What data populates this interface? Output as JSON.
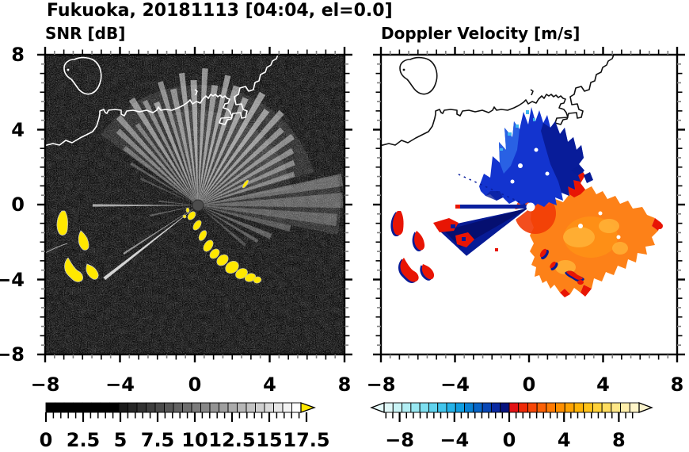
{
  "figure": {
    "title": "Fukuoka, 20181113 [04:04, el=0.0]",
    "panels": [
      {
        "subtitle": "SNR [dB]"
      },
      {
        "subtitle": "Doppler Velocity [m/s]"
      }
    ]
  },
  "axes": {
    "range": [
      -8,
      8
    ],
    "minor_step": 0.5,
    "x_tick_values": [
      -8,
      -4,
      0,
      4,
      8
    ],
    "x_tick_labels": [
      "−8",
      "−4",
      "0",
      "4",
      "8"
    ],
    "y_tick_values": [
      8,
      4,
      0,
      -4,
      -8
    ],
    "y_tick_labels": [
      "8",
      "4",
      "0",
      "−4",
      "−8"
    ]
  },
  "colorbars": {
    "snr": {
      "tick_values": [
        0,
        2.5,
        5,
        7.5,
        10,
        12.5,
        15,
        17.5
      ],
      "tick_labels": [
        "0",
        "2.5",
        "5",
        "7.5",
        "10",
        "12.5",
        "15",
        "17.5"
      ],
      "minor_step": 0.5,
      "overflow_arrow_color": "#ffe800",
      "segments": [
        "#000000",
        "#000000",
        "#000000",
        "#000000",
        "#000000",
        "#000000",
        "#000000",
        "#000000",
        "#1a1a1a",
        "#262626",
        "#323232",
        "#3e3e3e",
        "#4a4a4a",
        "#565656",
        "#626262",
        "#6e6e6e",
        "#7b7b7b",
        "#878787",
        "#939393",
        "#9f9f9f",
        "#ababab",
        "#b7b7b7",
        "#c3c3c3",
        "#cfcfcf",
        "#dbdbdb",
        "#e7e7e7",
        "#f3f3f3",
        "#ffffff"
      ]
    },
    "doppler": {
      "tick_values": [
        -8,
        -4,
        0,
        4,
        8
      ],
      "tick_labels": [
        "−8",
        "−4",
        "0",
        "4",
        "8"
      ],
      "minor_step": 0.5,
      "underflow_arrow_color": "#e6fbfb",
      "overflow_arrow_color": "#fbf3cd",
      "segments_negative": [
        "#dff8f8",
        "#c9f4f6",
        "#b2eef4",
        "#98e8f2",
        "#7ddff0",
        "#60d3ee",
        "#42c5ec",
        "#24b2e8",
        "#109de0",
        "#0881d4",
        "#0765c8",
        "#0847b6",
        "#0a2aa2",
        "#06137e"
      ],
      "segments_positive": [
        "#e31114",
        "#ef2a08",
        "#f74708",
        "#fc6105",
        "#ff7a02",
        "#ff9000",
        "#ffa303",
        "#ffb408",
        "#ffc31a",
        "#ffd13a",
        "#ffdd60",
        "#ffe787",
        "#ffefab",
        "#fff5c9"
      ]
    }
  },
  "chart_data": [
    {
      "type": "heatmap",
      "variant": "radar_ppi",
      "title": "SNR [dB]",
      "xlim": [
        -8,
        8
      ],
      "ylim": [
        -8,
        8
      ],
      "xticks": [
        -8,
        -4,
        0,
        4,
        8
      ],
      "yticks": [
        8,
        4,
        0,
        -4,
        -8
      ],
      "minor_tick_step": 0.5,
      "grid": false,
      "radar_center_xy": [
        0.1,
        -0.1
      ],
      "colorbar": {
        "ticks": [
          0,
          2.5,
          5,
          7.5,
          10,
          12.5,
          15,
          17.5
        ],
        "range": [
          0,
          17.5
        ],
        "scheme": "black to white grayscale, black below 5 dB",
        "overflow": "yellow arrow for values above range"
      },
      "features": [
        "black noisy background speckle over whole panel",
        "white coastline of Hakata Bay across upper third with boxy harbor piers, exiting top edge near x=4.5",
        "closed island outline near (-6.5,6.5) with small islet dot",
        "bright white radial beams fanning mostly upward and to the right from radar center near (0,-0.1)",
        "thin bright ray toward lower-left and horizontal ray toward left",
        "dark gray radar dome disk at the center",
        "high-SNR yellow arc cluster near (-7,-1.5) to (-6,-4)",
        "chain of yellow high-SNR blobs from just below center toward (3.5,-4)"
      ],
      "beams": [
        [
          10,
          152,
          128,
          0.1
        ],
        [
          32,
          120,
          96,
          0.08
        ],
        [
          90,
          180,
          24,
          0.11
        ],
        [
          -52,
          118,
          3,
          0.3
        ],
        [
          -47,
          138,
          3,
          0.38
        ],
        [
          -42,
          150,
          3,
          0.42
        ],
        [
          -37,
          128,
          2.5,
          0.36
        ],
        [
          -32,
          158,
          3,
          0.48
        ],
        [
          -27,
          148,
          2.5,
          0.42
        ],
        [
          -22,
          140,
          3,
          0.5
        ],
        [
          -17,
          163,
          2.5,
          0.46
        ],
        [
          -12,
          150,
          3,
          0.44
        ],
        [
          -7,
          168,
          2.5,
          0.5
        ],
        [
          -2,
          158,
          3,
          0.52
        ],
        [
          3,
          173,
          2.5,
          0.5
        ],
        [
          8,
          153,
          3,
          0.48
        ],
        [
          13,
          168,
          2.5,
          0.52
        ],
        [
          18,
          158,
          3,
          0.5
        ],
        [
          24,
          148,
          3,
          0.5
        ],
        [
          30,
          163,
          3,
          0.52
        ],
        [
          36,
          148,
          3,
          0.5
        ],
        [
          42,
          158,
          3,
          0.48
        ],
        [
          48,
          143,
          3,
          0.44
        ],
        [
          54,
          148,
          3,
          0.42
        ],
        [
          60,
          138,
          3,
          0.4
        ],
        [
          66,
          133,
          3,
          0.38
        ],
        [
          72,
          128,
          3,
          0.34
        ],
        [
          80,
          185,
          5,
          0.26
        ],
        [
          88,
          183,
          6,
          0.24
        ],
        [
          96,
          176,
          5,
          0.22
        ],
        [
          104,
          120,
          4,
          0.26
        ],
        [
          113,
          100,
          4,
          0.28
        ],
        [
          121,
          88,
          3,
          0.26
        ],
        [
          130,
          78,
          3,
          0.22
        ],
        [
          232,
          150,
          1.6,
          0.8
        ],
        [
          237,
          112,
          1.2,
          0.5
        ],
        [
          258,
          62,
          2,
          0.28
        ],
        [
          270,
          133,
          1.4,
          0.6
        ],
        [
          276,
          50,
          2,
          0.26
        ],
        [
          -58,
          100,
          2,
          0.26
        ],
        [
          -65,
          80,
          2,
          0.2
        ]
      ]
    },
    {
      "type": "heatmap",
      "variant": "radar_ppi",
      "title": "Doppler Velocity [m/s]",
      "xlim": [
        -8,
        8
      ],
      "ylim": [
        -8,
        8
      ],
      "xticks": [
        -8,
        -4,
        0,
        4,
        8
      ],
      "yticks": [
        8,
        4,
        0,
        -4,
        -8
      ],
      "minor_tick_step": 0.5,
      "grid": false,
      "radar_center_xy": [
        0.1,
        -0.1
      ],
      "colorbar": {
        "ticks": [
          -8,
          -4,
          0,
          4,
          8
        ],
        "range": [
          -9.4,
          9.4
        ],
        "scheme": "diverging: pale cyan-blue-navy for negative, red-orange-cream for positive",
        "underflow": "pale cyan arrow",
        "overflow": "cream arrow"
      },
      "features": [
        "white background, black coastline identical to SNR panel",
        "jagged blue/navy negative-velocity lobe above and left of radar center",
        "jagged orange/red positive-velocity lobe right and below radar center with amber interior",
        "narrow navy wedge and horizontal navy streak pointing left-down from center",
        "dotted thin navy ray toward upper-left",
        "red arcs with navy rims near (-7,-1.5) to (-6,-4) mirroring SNR yellow arcs",
        "small scattered red/navy arcs below-right of the orange lobe",
        "white dot at radar center"
      ]
    }
  ]
}
